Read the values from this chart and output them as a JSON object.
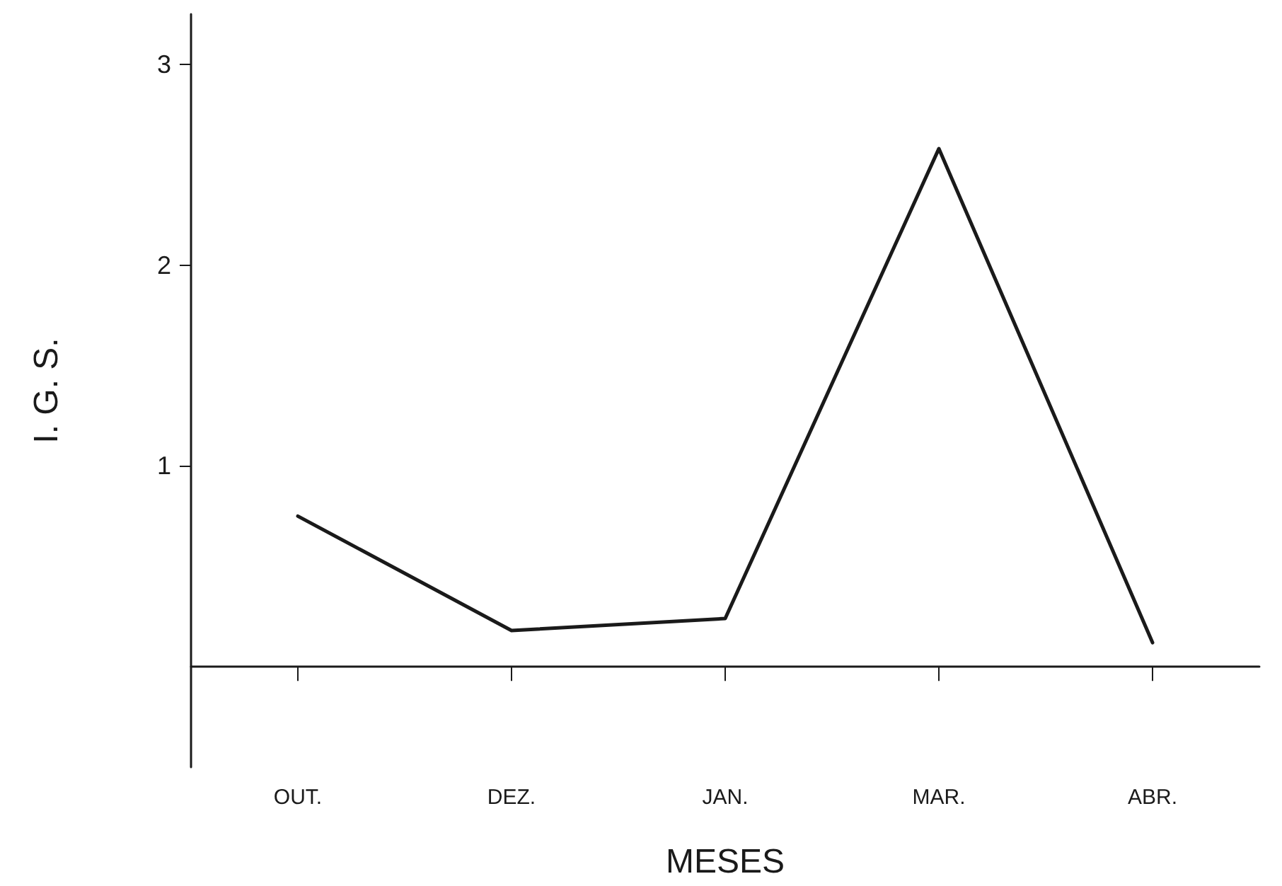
{
  "chart_data": {
    "type": "line",
    "xlabel": "MESES",
    "ylabel": "I. G. S.",
    "categories": [
      "OUT.",
      "DEZ.",
      "JAN.",
      "MAR.",
      "ABR."
    ],
    "series": [
      {
        "color": "#1a1a1a",
        "values": [
          0.75,
          0.18,
          0.24,
          2.58,
          0.12
        ]
      }
    ],
    "ylim": [
      -0.5,
      3.25
    ],
    "yticks": [
      1,
      2,
      3
    ],
    "grid": false,
    "marker": "none",
    "line_style": "solid"
  }
}
